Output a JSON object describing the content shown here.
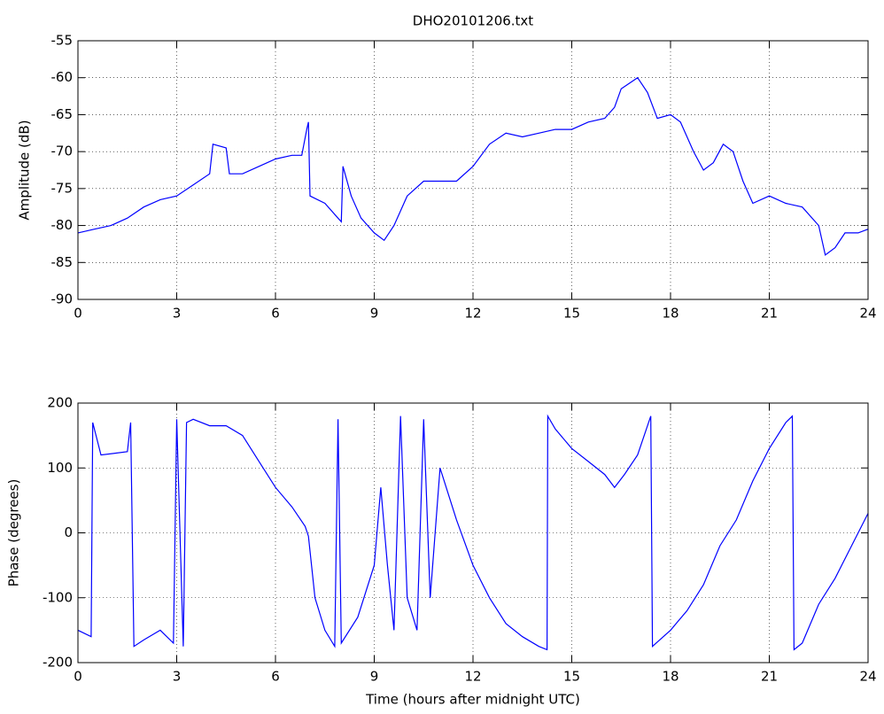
{
  "chart_data": [
    {
      "type": "line",
      "title": "DHO20101206.txt",
      "y_label": "Amplitude (dB)",
      "x": [
        0,
        0.5,
        1,
        1.5,
        2,
        2.5,
        3,
        3.5,
        4,
        4.1,
        4.5,
        4.6,
        5,
        5.5,
        6,
        6.5,
        6.8,
        6.95,
        7.0,
        7.05,
        7.5,
        8,
        8.05,
        8.3,
        8.6,
        9,
        9.3,
        9.6,
        10,
        10.5,
        11,
        11.5,
        12,
        12.5,
        13,
        13.5,
        14,
        14.5,
        15,
        15.5,
        16,
        16.3,
        16.5,
        17,
        17.3,
        17.6,
        18,
        18.3,
        18.7,
        19,
        19.3,
        19.6,
        19.9,
        20.2,
        20.5,
        21,
        21.5,
        22,
        22.5,
        22.7,
        23,
        23.3,
        23.7,
        24
      ],
      "series": [
        {
          "name": "Amplitude",
          "color": "#0000ff",
          "values": [
            -81,
            -80.5,
            -80,
            -79,
            -77.5,
            -76.5,
            -76,
            -74.5,
            -73,
            -69,
            -69.5,
            -73,
            -73,
            -72,
            -71,
            -70.5,
            -70.5,
            -67,
            -66,
            -76,
            -77,
            -79.5,
            -72,
            -76,
            -79,
            -81,
            -82,
            -80,
            -76,
            -74,
            -74,
            -74,
            -72,
            -69,
            -67.5,
            -68,
            -67.5,
            -67,
            -67,
            -66,
            -65.5,
            -64,
            -61.5,
            -60,
            -62,
            -65.5,
            -65,
            -66,
            -70,
            -72.5,
            -71.5,
            -69,
            -70,
            -74,
            -77,
            -76,
            -77,
            -77.5,
            -80,
            -84,
            -83,
            -81,
            -81,
            -80.5
          ]
        }
      ],
      "xlim": [
        0,
        24
      ],
      "xticks": [
        0,
        3,
        6,
        9,
        12,
        15,
        18,
        21,
        24
      ],
      "ylim": [
        -90,
        -55
      ],
      "yticks": [
        -90,
        -85,
        -80,
        -75,
        -70,
        -65,
        -60,
        -55
      ],
      "grid": true
    },
    {
      "type": "line",
      "x_label": "Time (hours after midnight UTC)",
      "y_label": "Phase (degrees)",
      "x": [
        0,
        0.4,
        0.45,
        0.7,
        1.5,
        1.6,
        1.7,
        2,
        2.5,
        2.9,
        3.0,
        3.2,
        3.3,
        3.5,
        4,
        4.5,
        5,
        5.5,
        6,
        6.5,
        6.9,
        7.0,
        7.2,
        7.5,
        7.8,
        7.9,
        8.0,
        8.5,
        9,
        9.2,
        9.4,
        9.6,
        9.8,
        10,
        10.3,
        10.5,
        10.7,
        11,
        11.5,
        12,
        12.5,
        13,
        13.5,
        14,
        14.25,
        14.27,
        14.5,
        15,
        15.5,
        16,
        16.3,
        16.6,
        17,
        17.4,
        17.45,
        18,
        18.5,
        19,
        19.5,
        20,
        20.5,
        21,
        21.5,
        21.7,
        21.75,
        22,
        22.5,
        23,
        23.5,
        24
      ],
      "series": [
        {
          "name": "Phase",
          "color": "#0000ff",
          "values": [
            -150,
            -160,
            170,
            120,
            125,
            170,
            -175,
            -165,
            -150,
            -170,
            175,
            -175,
            170,
            175,
            165,
            165,
            150,
            110,
            70,
            40,
            10,
            -5,
            -100,
            -150,
            -175,
            175,
            -170,
            -130,
            -50,
            70,
            -50,
            -150,
            180,
            -100,
            -150,
            175,
            -100,
            100,
            20,
            -50,
            -100,
            -140,
            -160,
            -175,
            -180,
            180,
            160,
            130,
            110,
            90,
            70,
            90,
            120,
            180,
            -175,
            -150,
            -120,
            -80,
            -20,
            20,
            80,
            130,
            170,
            180,
            -180,
            -170,
            -110,
            -70,
            -20,
            30
          ]
        }
      ],
      "xlim": [
        0,
        24
      ],
      "xticks": [
        0,
        3,
        6,
        9,
        12,
        15,
        18,
        21,
        24
      ],
      "ylim": [
        -200,
        200
      ],
      "yticks": [
        -200,
        -100,
        0,
        100,
        200
      ],
      "grid": true
    }
  ]
}
